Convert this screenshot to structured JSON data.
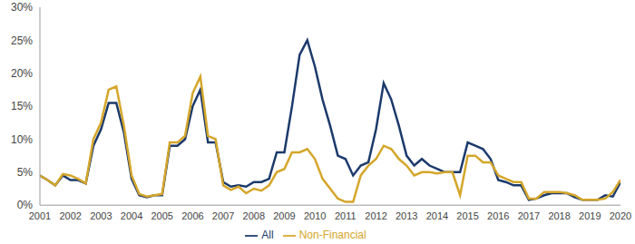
{
  "chart_data": {
    "type": "line",
    "x": [
      2001,
      2001.25,
      2001.5,
      2001.75,
      2002,
      2002.25,
      2002.5,
      2002.75,
      2003,
      2003.25,
      2003.5,
      2003.75,
      2004,
      2004.25,
      2004.5,
      2004.75,
      2005,
      2005.25,
      2005.5,
      2005.75,
      2006,
      2006.25,
      2006.5,
      2006.75,
      2007,
      2007.25,
      2007.5,
      2007.75,
      2008,
      2008.25,
      2008.5,
      2008.75,
      2009,
      2009.25,
      2009.5,
      2009.75,
      2010,
      2010.25,
      2010.5,
      2010.75,
      2011,
      2011.25,
      2011.5,
      2011.75,
      2012,
      2012.25,
      2012.5,
      2012.75,
      2013,
      2013.25,
      2013.5,
      2013.75,
      2014,
      2014.25,
      2014.5,
      2014.75,
      2015,
      2015.25,
      2015.5,
      2015.75,
      2016,
      2016.25,
      2016.5,
      2016.75,
      2017,
      2017.25,
      2017.5,
      2017.75,
      2018,
      2018.25,
      2018.5,
      2018.75,
      2019,
      2019.25,
      2019.5,
      2019.75,
      2020
    ],
    "series": [
      {
        "name": "All",
        "color": "#1c3a6b",
        "values": [
          4.5,
          3.8,
          3.0,
          4.5,
          3.8,
          3.8,
          3.3,
          9.0,
          11.5,
          15.5,
          15.5,
          11.0,
          4.0,
          1.5,
          1.2,
          1.5,
          1.5,
          9.0,
          9.0,
          10.0,
          15.0,
          17.5,
          9.5,
          9.5,
          3.5,
          2.8,
          3.0,
          2.8,
          3.5,
          3.5,
          4.0,
          8.0,
          8.0,
          15.0,
          22.8,
          25.0,
          21.0,
          16.0,
          12.0,
          7.5,
          7.0,
          4.5,
          6.0,
          6.5,
          11.5,
          18.5,
          16.0,
          12.0,
          7.5,
          6.0,
          7.0,
          6.0,
          5.5,
          5.0,
          5.0,
          5.0,
          9.5,
          9.0,
          8.5,
          7.0,
          3.8,
          3.5,
          3.0,
          3.0,
          0.8,
          1.0,
          1.5,
          1.8,
          1.8,
          1.8,
          1.2,
          0.8,
          0.8,
          0.8,
          1.5,
          1.3,
          3.5
        ]
      },
      {
        "name": "Non-Financial",
        "color": "#d4a62a",
        "values": [
          4.5,
          3.8,
          3.0,
          4.7,
          4.5,
          4.0,
          3.3,
          10.0,
          12.5,
          17.5,
          18.0,
          12.0,
          4.5,
          1.7,
          1.3,
          1.5,
          1.7,
          9.5,
          9.5,
          10.5,
          17.0,
          19.5,
          10.5,
          10.0,
          3.0,
          2.3,
          2.8,
          1.8,
          2.5,
          2.2,
          3.0,
          5.0,
          5.5,
          8.0,
          8.0,
          8.5,
          7.0,
          4.0,
          2.5,
          1.0,
          0.5,
          0.5,
          4.5,
          6.0,
          7.0,
          9.0,
          8.5,
          7.0,
          6.0,
          4.5,
          5.0,
          5.0,
          4.8,
          5.0,
          5.0,
          1.5,
          7.5,
          7.5,
          6.5,
          6.5,
          4.5,
          4.0,
          3.5,
          3.5,
          1.0,
          1.0,
          2.0,
          2.0,
          2.0,
          1.8,
          1.5,
          0.8,
          0.8,
          0.8,
          1.0,
          2.0,
          3.8
        ]
      }
    ],
    "xlim": [
      2001,
      2020
    ],
    "xticks": [
      2001,
      2002,
      2003,
      2004,
      2005,
      2006,
      2007,
      2008,
      2009,
      2010,
      2011,
      2012,
      2013,
      2014,
      2015,
      2016,
      2017,
      2018,
      2019,
      2020
    ],
    "ylim": [
      0,
      30
    ],
    "yticks": [
      {
        "value": 0,
        "label": "0%"
      },
      {
        "value": 5,
        "label": "5%"
      },
      {
        "value": 10,
        "label": "10%"
      },
      {
        "value": 15,
        "label": "15%"
      },
      {
        "value": 20,
        "label": "20%"
      },
      {
        "value": 25,
        "label": "25%"
      },
      {
        "value": 30,
        "label": "30%"
      }
    ],
    "grid": false,
    "legend": "bottom"
  }
}
